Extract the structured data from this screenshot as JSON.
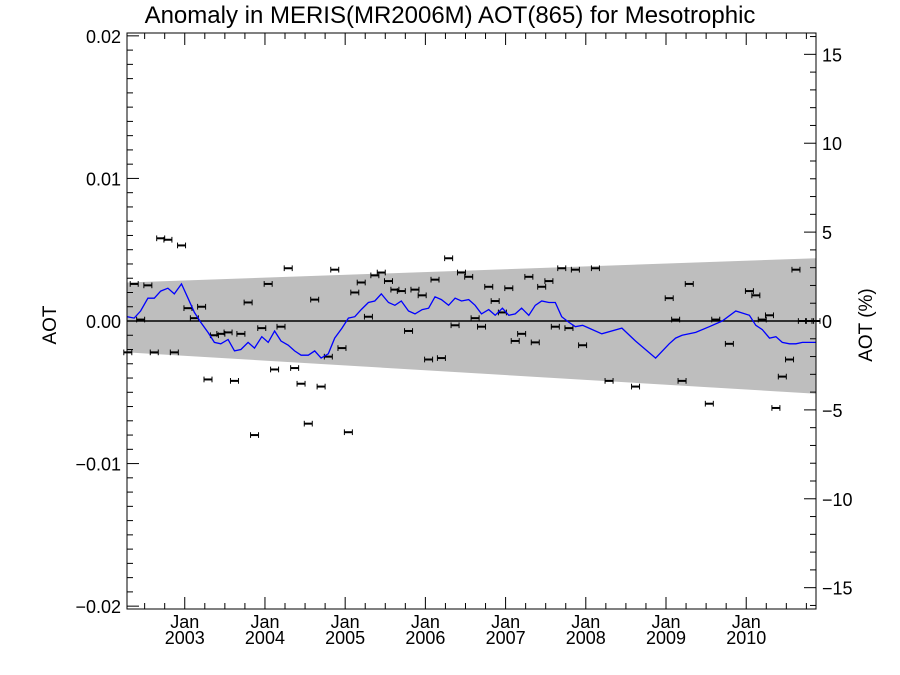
{
  "chart_data": {
    "type": "scatter",
    "title": "Anomaly in MERIS(MR2006M) AOT(865) for Mesotrophic",
    "ylabel_left": "AOT",
    "ylabel_right": "AOT (%)",
    "xlabel": "",
    "x_range": [
      2002.28,
      2010.87
    ],
    "ylim": [
      -0.0202,
      0.0202
    ],
    "ylim_right": [
      -16.2,
      16.2
    ],
    "y_ticks": [
      {
        "v": -0.02,
        "label": "−0.02"
      },
      {
        "v": -0.01,
        "label": "−0.01"
      },
      {
        "v": 0,
        "label": "0.00"
      },
      {
        "v": 0.01,
        "label": "0.01"
      },
      {
        "v": 0.02,
        "label": "0.02"
      }
    ],
    "y_ticks_right": [
      {
        "v": -15,
        "label": "−15"
      },
      {
        "v": -10,
        "label": "−10"
      },
      {
        "v": -5,
        "label": "−5"
      },
      {
        "v": 0,
        "label": "0"
      },
      {
        "v": 5,
        "label": "5"
      },
      {
        "v": 10,
        "label": "10"
      },
      {
        "v": 15,
        "label": "15"
      }
    ],
    "x_ticks": [
      {
        "x": 2003.0,
        "month": "Jan",
        "year": "2003"
      },
      {
        "x": 2004.0,
        "month": "Jan",
        "year": "2004"
      },
      {
        "x": 2005.0,
        "month": "Jan",
        "year": "2005"
      },
      {
        "x": 2006.0,
        "month": "Jan",
        "year": "2006"
      },
      {
        "x": 2007.0,
        "month": "Jan",
        "year": "2007"
      },
      {
        "x": 2008.0,
        "month": "Jan",
        "year": "2008"
      },
      {
        "x": 2009.0,
        "month": "Jan",
        "year": "2009"
      },
      {
        "x": 2010.0,
        "month": "Jan",
        "year": "2010"
      }
    ],
    "uncertainty_band": {
      "x": [
        2002.28,
        2010.87
      ],
      "upper": [
        0.0027,
        0.0044
      ],
      "lower": [
        -0.0022,
        -0.0051
      ]
    },
    "zero_line": true,
    "grid": false,
    "series": [
      {
        "kind": "points_with_errorbars",
        "color": "#000000",
        "x": [
          2002.29,
          2002.37,
          2002.45,
          2002.54,
          2002.62,
          2002.7,
          2002.79,
          2002.87,
          2002.96,
          2003.04,
          2003.12,
          2003.21,
          2003.29,
          2003.37,
          2003.45,
          2003.54,
          2003.62,
          2003.7,
          2003.79,
          2003.87,
          2003.96,
          2004.04,
          2004.12,
          2004.2,
          2004.29,
          2004.37,
          2004.45,
          2004.54,
          2004.62,
          2004.7,
          2004.79,
          2004.87,
          2004.96,
          2005.04,
          2005.12,
          2005.2,
          2005.29,
          2005.37,
          2005.45,
          2005.54,
          2005.62,
          2005.7,
          2005.79,
          2005.87,
          2005.96,
          2006.04,
          2006.12,
          2006.2,
          2006.29,
          2006.37,
          2006.45,
          2006.54,
          2006.62,
          2006.7,
          2006.79,
          2006.87,
          2006.96,
          2007.04,
          2007.12,
          2007.2,
          2007.29,
          2007.37,
          2007.45,
          2007.54,
          2007.62,
          2007.7,
          2007.79,
          2007.87,
          2007.96,
          2008.12,
          2008.29,
          2008.62,
          2009.04,
          2009.12,
          2009.2,
          2009.29,
          2009.54,
          2009.62,
          2009.79,
          2010.04,
          2010.12,
          2010.2,
          2010.29,
          2010.37,
          2010.45,
          2010.54,
          2010.62,
          2010.7,
          2010.79,
          2010.87
        ],
        "y": [
          -0.0022,
          0.0026,
          0.0001,
          0.0025,
          -0.0022,
          0.0058,
          0.0057,
          -0.0022,
          0.0053,
          0.0009,
          0.0002,
          0.001,
          -0.0041,
          -0.001,
          -0.0009,
          -0.0008,
          -0.0042,
          -0.0009,
          0.0013,
          -0.008,
          -0.0005,
          0.0026,
          -0.0034,
          -0.0004,
          0.0037,
          -0.0033,
          -0.0044,
          -0.0072,
          0.0015,
          -0.0046,
          -0.0025,
          0.0036,
          -0.0019,
          -0.0078,
          0.002,
          0.0027,
          0.0003,
          0.0032,
          0.0034,
          0.0028,
          0.0022,
          0.0021,
          -0.0007,
          0.0022,
          0.0018,
          -0.0027,
          0.0029,
          -0.0026,
          0.0044,
          -0.0003,
          0.0034,
          0.0031,
          0.0002,
          -0.0004,
          0.0024,
          0.0014,
          0.0006,
          0.0023,
          -0.0014,
          -0.0009,
          0.0031,
          -0.0015,
          0.0024,
          0.0028,
          -0.0004,
          0.0037,
          -0.0005,
          0.0036,
          -0.0017,
          0.0037,
          -0.0042,
          -0.0046,
          0.0016,
          0.0001,
          -0.0042,
          0.0026,
          -0.0058,
          0.0001,
          -0.0016,
          0.0021,
          0.0018,
          0.0001,
          0.0004,
          -0.0061,
          -0.0039,
          -0.0027,
          0.0036,
          0.0,
          0.0,
          0.0
        ],
        "err": 0.0002
      },
      {
        "kind": "line",
        "color": "#0000ff",
        "x": [
          2002.28,
          2002.37,
          2002.45,
          2002.54,
          2002.62,
          2002.7,
          2002.79,
          2002.87,
          2002.96,
          2003.04,
          2003.12,
          2003.2,
          2003.29,
          2003.37,
          2003.45,
          2003.54,
          2003.62,
          2003.7,
          2003.79,
          2003.87,
          2003.96,
          2004.04,
          2004.12,
          2004.2,
          2004.29,
          2004.37,
          2004.45,
          2004.54,
          2004.62,
          2004.7,
          2004.79,
          2004.87,
          2004.96,
          2005.04,
          2005.12,
          2005.2,
          2005.29,
          2005.37,
          2005.45,
          2005.54,
          2005.62,
          2005.7,
          2005.79,
          2005.87,
          2005.96,
          2006.04,
          2006.12,
          2006.2,
          2006.29,
          2006.37,
          2006.45,
          2006.54,
          2006.62,
          2006.7,
          2006.79,
          2006.87,
          2006.96,
          2007.04,
          2007.12,
          2007.2,
          2007.29,
          2007.37,
          2007.45,
          2007.54,
          2007.62,
          2007.7,
          2007.79,
          2007.87,
          2007.96,
          2008.04,
          2008.2,
          2008.45,
          2008.62,
          2008.87,
          2009.04,
          2009.12,
          2009.2,
          2009.37,
          2009.54,
          2009.7,
          2009.87,
          2010.04,
          2010.12,
          2010.2,
          2010.29,
          2010.37,
          2010.45,
          2010.54,
          2010.62,
          2010.7,
          2010.79,
          2010.87
        ],
        "y": [
          0.0003,
          0.0002,
          0.0007,
          0.0016,
          0.0016,
          0.0021,
          0.0023,
          0.0019,
          0.0026,
          0.0016,
          0.0006,
          -0.0001,
          -0.0008,
          -0.0015,
          -0.0016,
          -0.0013,
          -0.0021,
          -0.002,
          -0.0015,
          -0.0019,
          -0.0011,
          -0.0015,
          -0.0007,
          -0.0014,
          -0.0017,
          -0.0021,
          -0.0024,
          -0.0024,
          -0.0021,
          -0.0026,
          -0.0023,
          -0.0012,
          -0.0005,
          0.0002,
          0.0003,
          0.0008,
          0.0013,
          0.0014,
          0.0019,
          0.0013,
          0.0011,
          0.0014,
          0.0007,
          0.0005,
          0.0008,
          0.0009,
          0.0017,
          0.0015,
          0.0011,
          0.0016,
          0.0014,
          0.0015,
          0.0011,
          0.0005,
          0.0008,
          0.0004,
          0.0009,
          0.0004,
          0.0005,
          0.0009,
          0.0004,
          0.0011,
          0.0014,
          0.0013,
          0.0013,
          0.0003,
          -0.0001,
          -0.0004,
          -0.0003,
          -0.0005,
          -0.0009,
          -0.0005,
          -0.0014,
          -0.0026,
          -0.0016,
          -0.0012,
          -0.001,
          -0.0008,
          -0.0004,
          0.0,
          0.0007,
          0.0004,
          -0.0003,
          -0.0006,
          -0.0012,
          -0.0011,
          -0.0015,
          -0.0016,
          -0.0016,
          -0.0015,
          -0.0015,
          -0.0015
        ]
      }
    ]
  }
}
